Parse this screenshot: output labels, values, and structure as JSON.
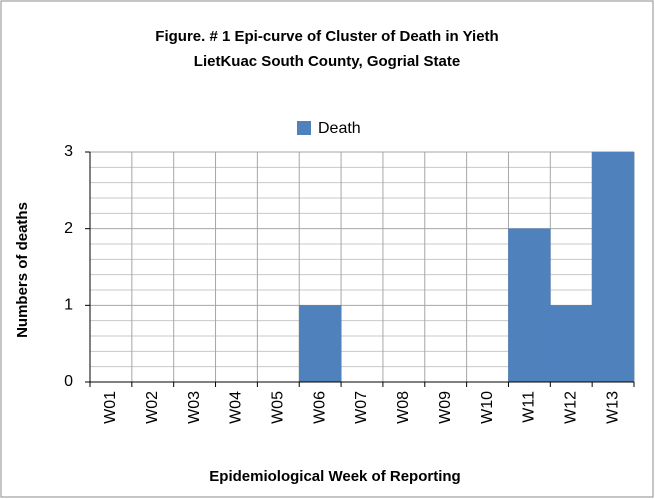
{
  "chart_data": {
    "type": "bar",
    "title": [
      "Figure. # 1 Epi-curve of Cluster of Death in Yieth",
      "LietKuac South County, Gogrial State"
    ],
    "x_label": "Epidemiological Week of Reporting",
    "y_label": "Numbers of deaths",
    "categories": [
      "W01",
      "W02",
      "W03",
      "W04",
      "W05",
      "W06",
      "W07",
      "W08",
      "W09",
      "W10",
      "W11",
      "W12",
      "W13"
    ],
    "series": [
      {
        "name": "Death",
        "color": "#4f81bd",
        "values": [
          0,
          0,
          0,
          0,
          0,
          1,
          0,
          0,
          0,
          0,
          2,
          1,
          3
        ]
      }
    ],
    "ylim": [
      0,
      3
    ],
    "yticks": [
      0,
      1,
      2,
      3
    ],
    "grid": true,
    "legend": "top"
  }
}
